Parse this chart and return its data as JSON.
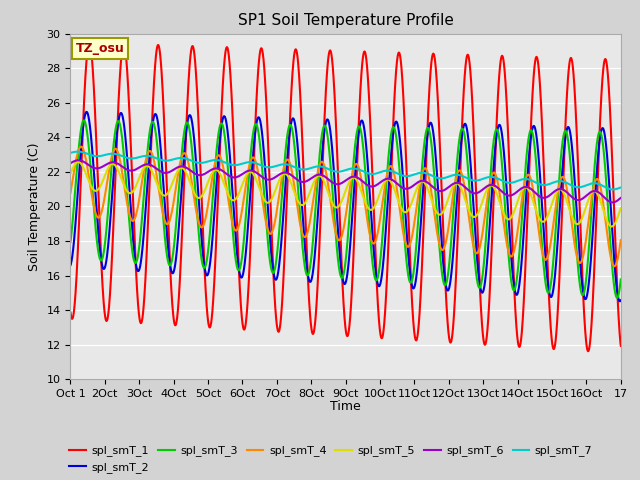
{
  "title": "SP1 Soil Temperature Profile",
  "xlabel": "Time",
  "ylabel": "Soil Temperature (C)",
  "ylim": [
    10,
    30
  ],
  "xlim_days": 16,
  "background_color": "#d3d3d3",
  "plot_bg_color": "#e8e8e8",
  "annotation_text": "TZ_osu",
  "annotation_bg": "#ffffcc",
  "annotation_border": "#999900",
  "annotation_text_color": "#aa0000",
  "xtick_labels": [
    "Oct 1",
    "2Oct",
    "3Oct",
    "4Oct",
    "5Oct",
    "6Oct",
    "7Oct",
    "8Oct",
    "9Oct",
    "10Oct",
    "11Oct",
    "12Oct",
    "13Oct",
    "14Oct",
    "15Oct",
    "16Oct",
    "17"
  ],
  "series": {
    "spl_smT_1": {
      "color": "#ff0000",
      "lw": 1.5
    },
    "spl_smT_2": {
      "color": "#0000dd",
      "lw": 1.5
    },
    "spl_smT_3": {
      "color": "#00cc00",
      "lw": 1.5
    },
    "spl_smT_4": {
      "color": "#ff8800",
      "lw": 1.5
    },
    "spl_smT_5": {
      "color": "#dddd00",
      "lw": 1.5
    },
    "spl_smT_6": {
      "color": "#9900cc",
      "lw": 1.5
    },
    "spl_smT_7": {
      "color": "#00cccc",
      "lw": 1.5
    }
  },
  "legend_labels": [
    "spl_smT_1",
    "spl_smT_2",
    "spl_smT_3",
    "spl_smT_4",
    "spl_smT_5",
    "spl_smT_6",
    "spl_smT_7"
  ]
}
